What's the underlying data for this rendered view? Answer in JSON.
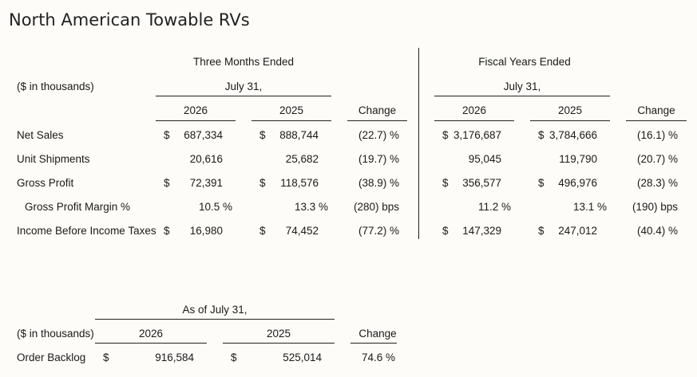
{
  "title": "North American Towable RVs",
  "top": {
    "units": "($ in thousands)",
    "groups": [
      {
        "label": "Three Months Ended",
        "sublabel": "July 31,",
        "col1": "2026",
        "col2": "2025",
        "change": "Change"
      },
      {
        "label": "Fiscal Years Ended",
        "sublabel": "July 31,",
        "col1": "2026",
        "col2": "2025",
        "change": "Change"
      }
    ],
    "rows": [
      {
        "label": "Net Sales",
        "q": {
          "c1_sym": "$",
          "c1": "687,334",
          "c2_sym": "$",
          "c2": "888,744",
          "chg": "(22.7) %"
        },
        "fy": {
          "c1_sym": "$",
          "c1": "3,176,687",
          "c2_sym": "$",
          "c2": "3,784,666",
          "chg": "(16.1) %"
        }
      },
      {
        "label": "Unit Shipments",
        "q": {
          "c1_sym": "",
          "c1": "20,616",
          "c2_sym": "",
          "c2": "25,682",
          "chg": "(19.7) %"
        },
        "fy": {
          "c1_sym": "",
          "c1": "95,045",
          "c2_sym": "",
          "c2": "119,790",
          "chg": "(20.7) %"
        }
      },
      {
        "label": "Gross Profit",
        "q": {
          "c1_sym": "$",
          "c1": "72,391",
          "c2_sym": "$",
          "c2": "118,576",
          "chg": "(38.9) %"
        },
        "fy": {
          "c1_sym": "$",
          "c1": "356,577",
          "c2_sym": "$",
          "c2": "496,976",
          "chg": "(28.3) %"
        }
      },
      {
        "label": "Gross Profit Margin %",
        "q": {
          "c1_sym": "",
          "c1": "10.5 %",
          "c2_sym": "",
          "c2": "13.3 %",
          "chg": "(280) bps"
        },
        "fy": {
          "c1_sym": "",
          "c1": "11.2 %",
          "c2_sym": "",
          "c2": "13.1 %",
          "chg": "(190) bps"
        }
      },
      {
        "label": "Income Before Income Taxes",
        "q": {
          "c1_sym": "$",
          "c1": "16,980",
          "c2_sym": "$",
          "c2": "74,452",
          "chg": "(77.2) %"
        },
        "fy": {
          "c1_sym": "$",
          "c1": "147,329",
          "c2_sym": "$",
          "c2": "247,012",
          "chg": "(40.4) %"
        }
      }
    ]
  },
  "bottom": {
    "header": "As of July 31,",
    "units": "($ in thousands)",
    "col1": "2026",
    "col2": "2025",
    "change": "Change",
    "row": {
      "label": "Order Backlog",
      "c1_sym": "$",
      "c1": "916,584",
      "c2_sym": "$",
      "c2": "525,014",
      "chg": "74.6 %"
    }
  }
}
